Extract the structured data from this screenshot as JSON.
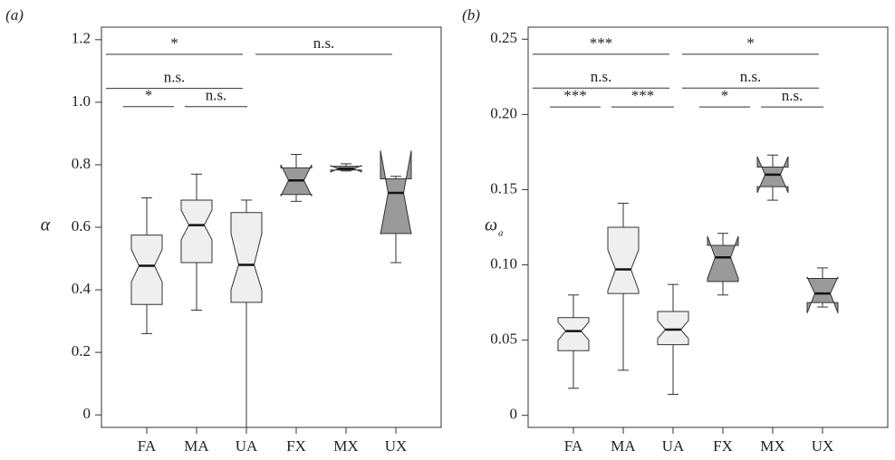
{
  "chart_data": [
    {
      "type": "box",
      "panel_label": "(a)",
      "ylabel": "α",
      "categories": [
        "FA",
        "MA",
        "UA",
        "FX",
        "MX",
        "UX"
      ],
      "colors": [
        "#efefef",
        "#efefef",
        "#efefef",
        "#9a9a9a",
        "#9a9a9a",
        "#9a9a9a"
      ],
      "boxes": [
        {
          "low": 0.26,
          "q1": 0.353,
          "notch_low": 0.425,
          "median": 0.477,
          "notch_high": 0.529,
          "q3": 0.575,
          "high": 0.694
        },
        {
          "low": 0.335,
          "q1": 0.487,
          "notch_low": 0.56,
          "median": 0.607,
          "notch_high": 0.655,
          "q3": 0.687,
          "high": 0.77
        },
        {
          "low": -0.04,
          "q1": 0.36,
          "notch_low": 0.4,
          "median": 0.48,
          "notch_high": 0.58,
          "q3": 0.647,
          "high": 0.687
        },
        {
          "low": 0.683,
          "q1": 0.705,
          "notch_low": 0.7,
          "median": 0.75,
          "notch_high": 0.8,
          "q3": 0.79,
          "high": 0.833
        },
        {
          "low": 0.78,
          "q1": 0.783,
          "notch_low": 0.777,
          "median": 0.787,
          "notch_high": 0.797,
          "q3": 0.795,
          "high": 0.803
        },
        {
          "low": 0.487,
          "q1": 0.58,
          "notch_low": 0.578,
          "median": 0.71,
          "notch_high": 0.845,
          "q3": 0.755,
          "high": 0.763
        }
      ],
      "ylim": [
        -0.04,
        1.24
      ],
      "yticks": [
        0,
        0.2,
        0.4,
        0.6,
        0.8,
        {
          "value": 1,
          "label": "1.0"
        },
        1.2
      ],
      "brackets": [
        {
          "label": "*",
          "from": "FA",
          "to": "UA",
          "y": 1.153
        },
        {
          "label": "n.s.",
          "from": "FX",
          "to": "UX",
          "y": 1.153
        },
        {
          "label": "n.s.",
          "from": "FA",
          "to": "UA",
          "y": 1.044
        },
        {
          "label": "*",
          "from": "FA",
          "to": "MA",
          "y": 0.986
        },
        {
          "label": "n.s.",
          "from": "MA",
          "to": "UA",
          "y": 0.986
        }
      ]
    },
    {
      "type": "box",
      "panel_label": "(b)",
      "ylabel": "ω",
      "ylabel_sub": "a",
      "categories": [
        "FA",
        "MA",
        "UA",
        "FX",
        "MX",
        "UX"
      ],
      "colors": [
        "#efefef",
        "#efefef",
        "#efefef",
        "#9a9a9a",
        "#9a9a9a",
        "#9a9a9a"
      ],
      "boxes": [
        {
          "low": 0.018,
          "q1": 0.043,
          "notch_low": 0.05,
          "median": 0.056,
          "notch_high": 0.062,
          "q3": 0.065,
          "high": 0.08
        },
        {
          "low": 0.03,
          "q1": 0.081,
          "notch_low": 0.083,
          "median": 0.097,
          "notch_high": 0.11,
          "q3": 0.125,
          "high": 0.141
        },
        {
          "low": 0.014,
          "q1": 0.047,
          "notch_low": 0.051,
          "median": 0.057,
          "notch_high": 0.063,
          "q3": 0.069,
          "high": 0.087
        },
        {
          "low": 0.08,
          "q1": 0.089,
          "notch_low": 0.091,
          "median": 0.105,
          "notch_high": 0.119,
          "q3": 0.113,
          "high": 0.121
        },
        {
          "low": 0.143,
          "q1": 0.152,
          "notch_low": 0.148,
          "median": 0.16,
          "notch_high": 0.172,
          "q3": 0.165,
          "high": 0.173
        },
        {
          "low": 0.072,
          "q1": 0.075,
          "notch_low": 0.068,
          "median": 0.081,
          "notch_high": 0.092,
          "q3": 0.091,
          "high": 0.098
        }
      ],
      "ylim": [
        -0.008,
        0.258
      ],
      "yticks": [
        0,
        0.05,
        {
          "value": 0.1,
          "label": "0.10"
        },
        0.15,
        {
          "value": 0.2,
          "label": "0.20"
        },
        0.25
      ],
      "brackets": [
        {
          "label": "***",
          "from": "FA",
          "to": "UA",
          "y": 0.24
        },
        {
          "label": "*",
          "from": "FX",
          "to": "UX",
          "y": 0.24
        },
        {
          "label": "n.s.",
          "from": "FA",
          "to": "UA",
          "y": 0.2175
        },
        {
          "label": "n.s.",
          "from": "FX",
          "to": "UX",
          "y": 0.2175
        },
        {
          "label": "***",
          "from": "FA",
          "to": "MA",
          "y": 0.205
        },
        {
          "label": "***",
          "from": "MA",
          "to": "UA",
          "y": 0.205
        },
        {
          "label": "*",
          "from": "FX",
          "to": "MX",
          "y": 0.205
        },
        {
          "label": "n.s.",
          "from": "MX",
          "to": "UX",
          "y": 0.205
        }
      ]
    }
  ]
}
